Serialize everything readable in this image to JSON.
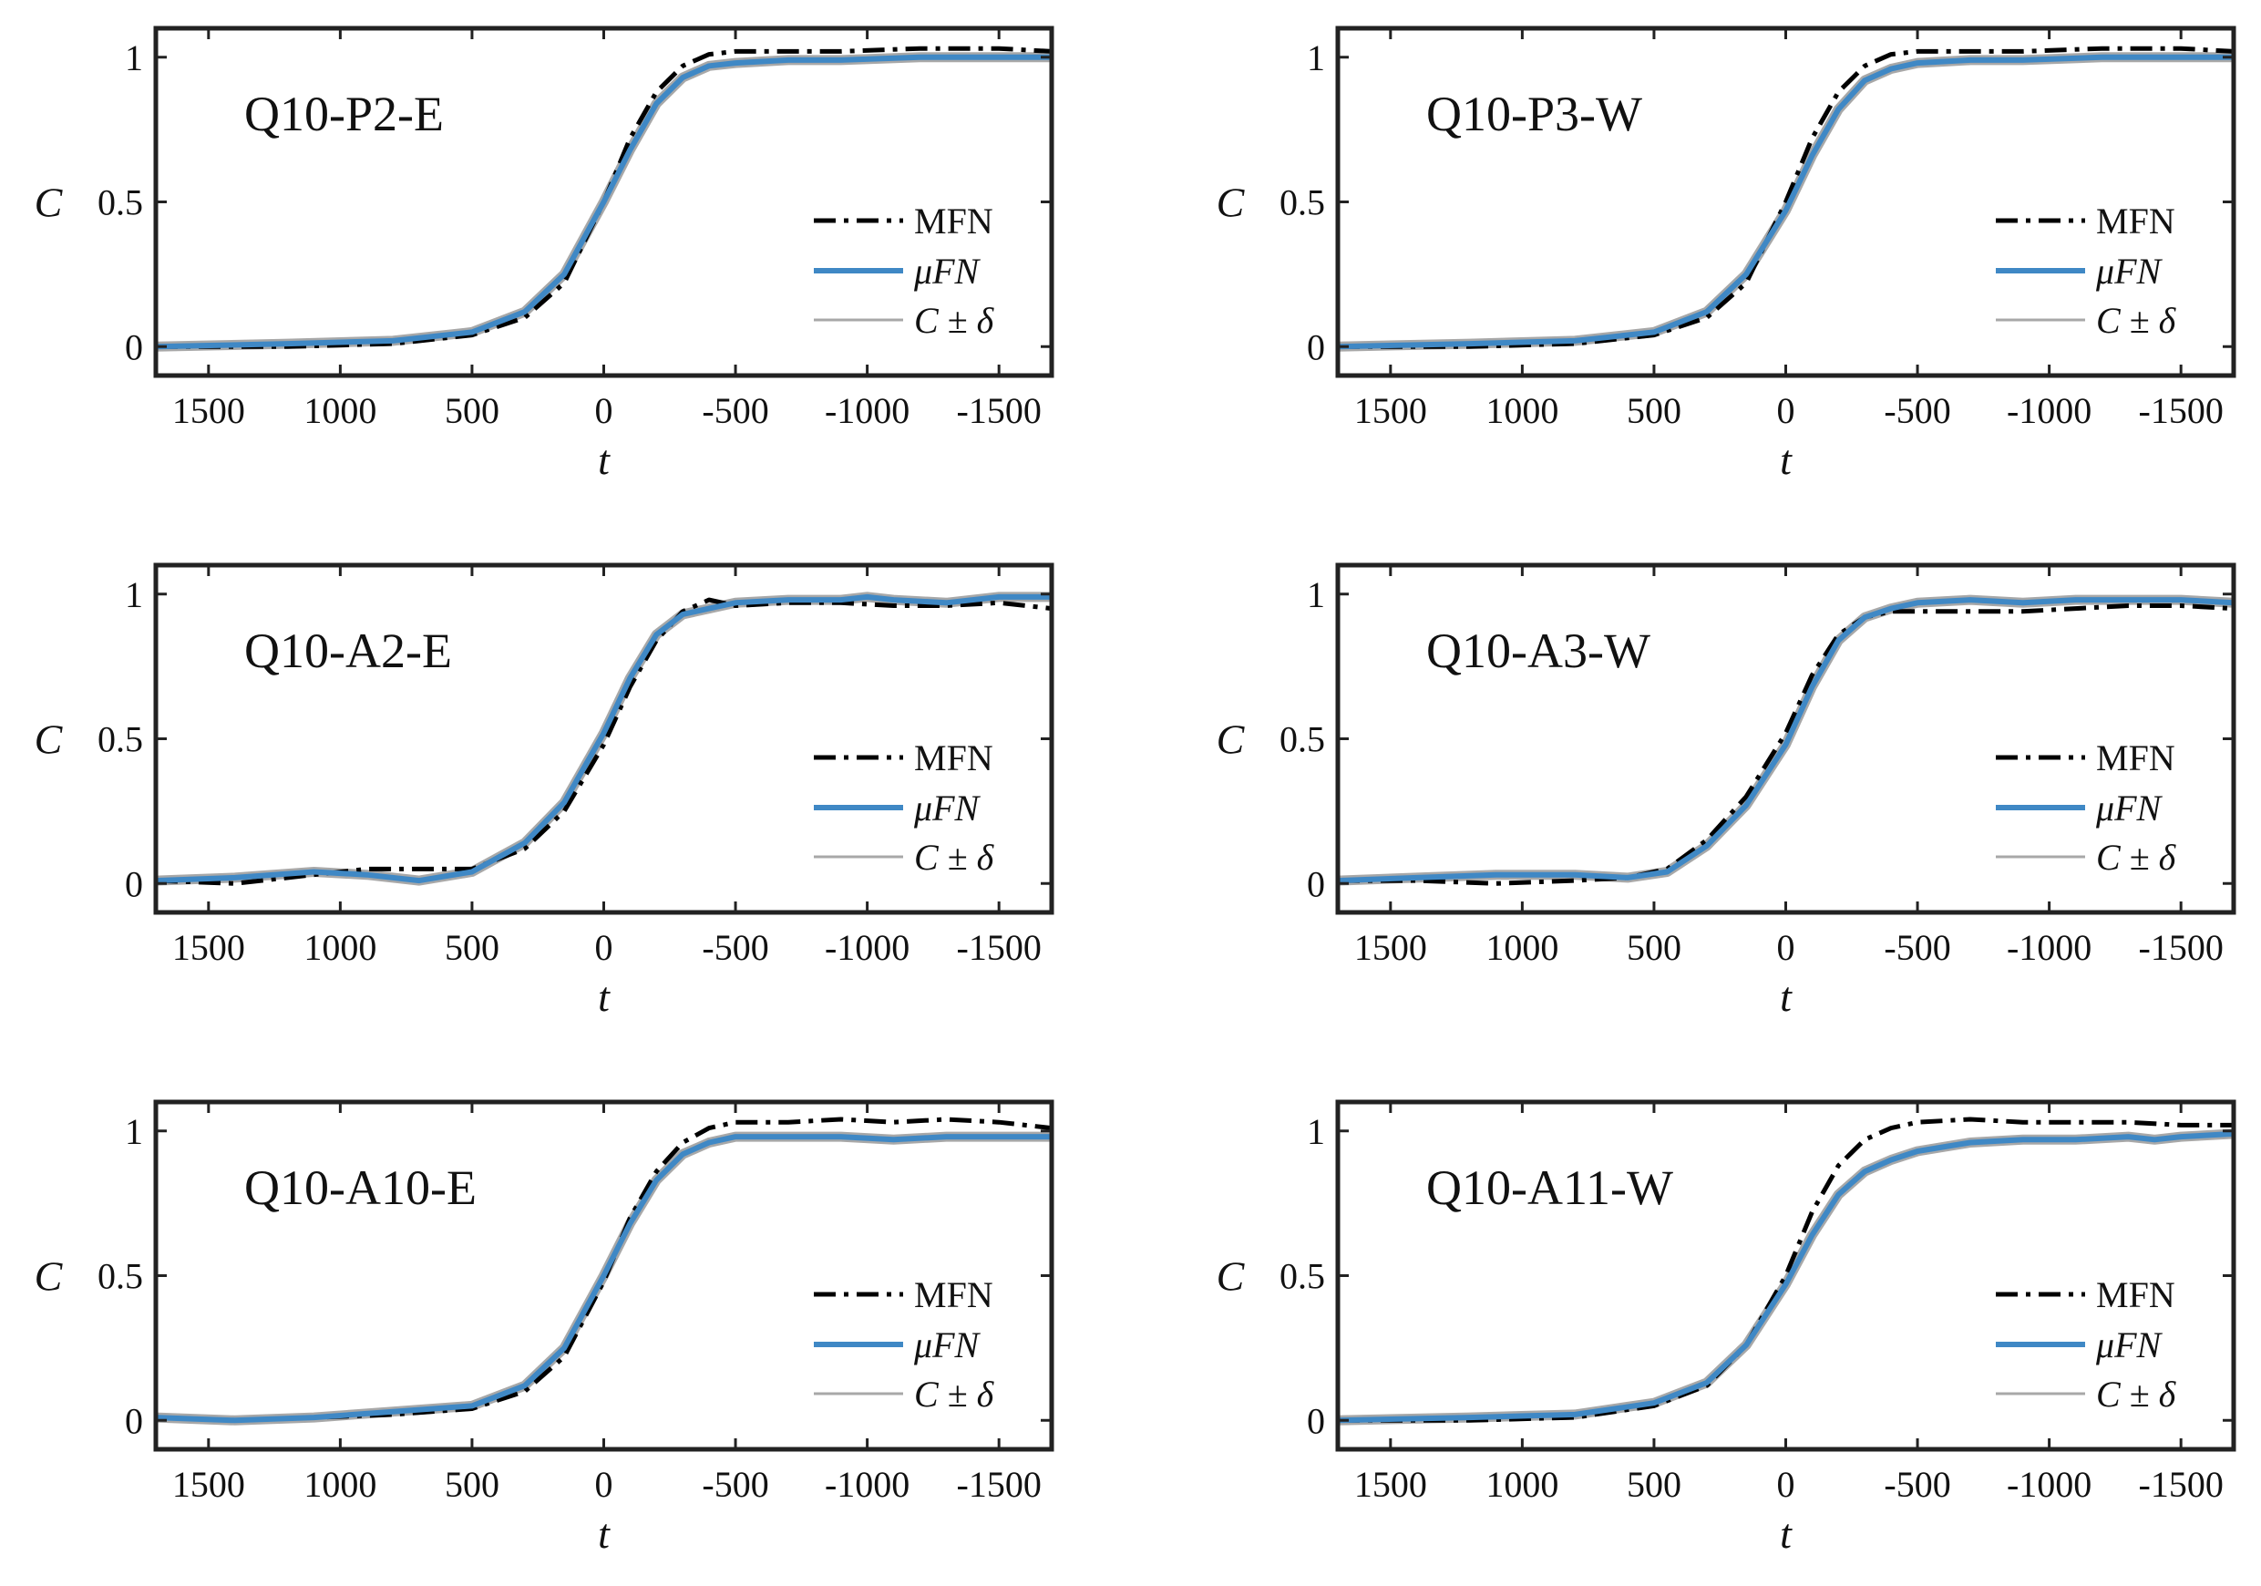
{
  "figure": {
    "layout": "3x2 grid of line plots",
    "colors": {
      "mfn": "#000000",
      "ufn": "#3f88c5",
      "band": "#a8a8a8",
      "axes": "#222222"
    }
  },
  "legend": {
    "items": [
      {
        "key": "mfn",
        "label": "MFN"
      },
      {
        "key": "ufn",
        "label": "μFN"
      },
      {
        "key": "band",
        "label": "C ± δ"
      }
    ]
  },
  "chart_data": [
    {
      "type": "line",
      "title": "Q10-P2-E",
      "xlabel": "t",
      "ylabel": "C",
      "xlim": [
        1700,
        -1700
      ],
      "ylim": [
        -0.1,
        1.1
      ],
      "xticks": [
        1500,
        1000,
        500,
        0,
        -500,
        -1000,
        -1500
      ],
      "xtick_labels": [
        "1500",
        "1000",
        "500",
        "0",
        "-500",
        "-1000",
        "-1500"
      ],
      "yticks": [
        0,
        0.5,
        1
      ],
      "ytick_labels": [
        "0",
        "0.5",
        "1"
      ],
      "legend_position": "lower-right",
      "series": [
        {
          "name": "MFN",
          "x": [
            1700,
            1200,
            800,
            500,
            300,
            150,
            0,
            -100,
            -200,
            -300,
            -400,
            -500,
            -700,
            -900,
            -1200,
            -1500,
            -1700
          ],
          "y": [
            0.0,
            0.0,
            0.01,
            0.04,
            0.1,
            0.22,
            0.5,
            0.72,
            0.88,
            0.97,
            1.01,
            1.02,
            1.02,
            1.02,
            1.03,
            1.03,
            1.02
          ]
        },
        {
          "name": "μFN",
          "x": [
            1700,
            1200,
            800,
            500,
            300,
            150,
            0,
            -100,
            -200,
            -300,
            -400,
            -500,
            -700,
            -900,
            -1200,
            -1500,
            -1700
          ],
          "y": [
            0.0,
            0.01,
            0.02,
            0.05,
            0.12,
            0.25,
            0.5,
            0.68,
            0.84,
            0.93,
            0.97,
            0.98,
            0.99,
            0.99,
            1.0,
            1.0,
            1.0
          ]
        }
      ]
    },
    {
      "type": "line",
      "title": "Q10-P3-W",
      "xlabel": "t",
      "ylabel": "C",
      "xlim": [
        1700,
        -1700
      ],
      "ylim": [
        -0.1,
        1.1
      ],
      "xticks": [
        1500,
        1000,
        500,
        0,
        -500,
        -1000,
        -1500
      ],
      "xtick_labels": [
        "1500",
        "1000",
        "500",
        "0",
        "-500",
        "-1000",
        "-1500"
      ],
      "yticks": [
        0,
        0.5,
        1
      ],
      "ytick_labels": [
        "0",
        "0.5",
        "1"
      ],
      "legend_position": "lower-right",
      "series": [
        {
          "name": "MFN",
          "x": [
            1700,
            1200,
            800,
            500,
            300,
            150,
            0,
            -100,
            -200,
            -300,
            -400,
            -500,
            -700,
            -900,
            -1200,
            -1500,
            -1700
          ],
          "y": [
            0.0,
            0.0,
            0.01,
            0.04,
            0.1,
            0.22,
            0.5,
            0.72,
            0.88,
            0.97,
            1.01,
            1.02,
            1.02,
            1.02,
            1.03,
            1.03,
            1.02
          ]
        },
        {
          "name": "μFN",
          "x": [
            1700,
            1200,
            800,
            500,
            300,
            150,
            0,
            -100,
            -200,
            -300,
            -400,
            -500,
            -700,
            -900,
            -1200,
            -1500,
            -1700
          ],
          "y": [
            0.0,
            0.01,
            0.02,
            0.05,
            0.12,
            0.25,
            0.47,
            0.66,
            0.82,
            0.92,
            0.96,
            0.98,
            0.99,
            0.99,
            1.0,
            1.0,
            1.0
          ]
        }
      ]
    },
    {
      "type": "line",
      "title": "Q10-A2-E",
      "xlabel": "t",
      "ylabel": "C",
      "xlim": [
        1700,
        -1700
      ],
      "ylim": [
        -0.1,
        1.1
      ],
      "xticks": [
        1500,
        1000,
        500,
        0,
        -500,
        -1000,
        -1500
      ],
      "xtick_labels": [
        "1500",
        "1000",
        "500",
        "0",
        "-500",
        "-1000",
        "-1500"
      ],
      "yticks": [
        0,
        0.5,
        1
      ],
      "ytick_labels": [
        "0",
        "0.5",
        "1"
      ],
      "legend_position": "lower-right",
      "series": [
        {
          "name": "MFN",
          "x": [
            1700,
            1400,
            1100,
            900,
            700,
            500,
            300,
            150,
            0,
            -100,
            -200,
            -300,
            -400,
            -500,
            -700,
            -900,
            -1100,
            -1300,
            -1500,
            -1700
          ],
          "y": [
            0.01,
            0.0,
            0.03,
            0.05,
            0.05,
            0.05,
            0.12,
            0.25,
            0.48,
            0.68,
            0.84,
            0.94,
            0.98,
            0.96,
            0.97,
            0.97,
            0.96,
            0.96,
            0.97,
            0.95
          ]
        },
        {
          "name": "μFN",
          "x": [
            1700,
            1400,
            1100,
            900,
            700,
            500,
            300,
            150,
            0,
            -100,
            -200,
            -300,
            -400,
            -500,
            -700,
            -900,
            -1000,
            -1100,
            -1300,
            -1500,
            -1700
          ],
          "y": [
            0.01,
            0.02,
            0.04,
            0.03,
            0.01,
            0.04,
            0.14,
            0.28,
            0.52,
            0.71,
            0.86,
            0.93,
            0.95,
            0.97,
            0.98,
            0.98,
            0.99,
            0.98,
            0.97,
            0.99,
            0.99
          ]
        }
      ]
    },
    {
      "type": "line",
      "title": "Q10-A3-W",
      "xlabel": "t",
      "ylabel": "C",
      "xlim": [
        1700,
        -1700
      ],
      "ylim": [
        -0.1,
        1.1
      ],
      "xticks": [
        1500,
        1000,
        500,
        0,
        -500,
        -1000,
        -1500
      ],
      "xtick_labels": [
        "1500",
        "1000",
        "500",
        "0",
        "-500",
        "-1000",
        "-1500"
      ],
      "yticks": [
        0,
        0.5,
        1
      ],
      "ytick_labels": [
        "0",
        "0.5",
        "1"
      ],
      "legend_position": "lower-right",
      "series": [
        {
          "name": "MFN",
          "x": [
            1700,
            1400,
            1100,
            800,
            600,
            450,
            300,
            150,
            0,
            -100,
            -200,
            -300,
            -400,
            -500,
            -700,
            -900,
            -1100,
            -1300,
            -1500,
            -1700
          ],
          "y": [
            0.01,
            0.01,
            0.0,
            0.01,
            0.02,
            0.05,
            0.15,
            0.3,
            0.52,
            0.72,
            0.86,
            0.92,
            0.94,
            0.94,
            0.94,
            0.94,
            0.95,
            0.96,
            0.96,
            0.95
          ]
        },
        {
          "name": "μFN",
          "x": [
            1700,
            1400,
            1100,
            800,
            600,
            450,
            300,
            150,
            0,
            -100,
            -200,
            -300,
            -400,
            -500,
            -700,
            -900,
            -1100,
            -1300,
            -1500,
            -1700
          ],
          "y": [
            0.01,
            0.02,
            0.03,
            0.03,
            0.02,
            0.04,
            0.13,
            0.27,
            0.48,
            0.68,
            0.84,
            0.92,
            0.95,
            0.97,
            0.98,
            0.97,
            0.98,
            0.98,
            0.98,
            0.97
          ]
        }
      ]
    },
    {
      "type": "line",
      "title": "Q10-A10-E",
      "xlabel": "t",
      "ylabel": "C",
      "xlim": [
        1700,
        -1700
      ],
      "ylim": [
        -0.1,
        1.1
      ],
      "xticks": [
        1500,
        1000,
        500,
        0,
        -500,
        -1000,
        -1500
      ],
      "xtick_labels": [
        "1500",
        "1000",
        "500",
        "0",
        "-500",
        "-1000",
        "-1500"
      ],
      "yticks": [
        0,
        0.5,
        1
      ],
      "ytick_labels": [
        "0",
        "0.5",
        "1"
      ],
      "legend_position": "lower-right",
      "series": [
        {
          "name": "MFN",
          "x": [
            1700,
            1400,
            1100,
            800,
            500,
            300,
            150,
            0,
            -100,
            -200,
            -300,
            -400,
            -500,
            -700,
            -900,
            -1100,
            -1300,
            -1500,
            -1700
          ],
          "y": [
            0.01,
            0.0,
            0.01,
            0.02,
            0.04,
            0.1,
            0.22,
            0.48,
            0.7,
            0.86,
            0.96,
            1.01,
            1.03,
            1.03,
            1.04,
            1.03,
            1.04,
            1.03,
            1.01
          ]
        },
        {
          "name": "μFN",
          "x": [
            1700,
            1400,
            1100,
            800,
            500,
            300,
            150,
            0,
            -100,
            -200,
            -300,
            -400,
            -500,
            -700,
            -900,
            -1100,
            -1300,
            -1500,
            -1700
          ],
          "y": [
            0.01,
            0.0,
            0.01,
            0.03,
            0.05,
            0.12,
            0.25,
            0.5,
            0.68,
            0.83,
            0.92,
            0.96,
            0.98,
            0.98,
            0.98,
            0.97,
            0.98,
            0.98,
            0.98
          ]
        }
      ]
    },
    {
      "type": "line",
      "title": "Q10-A11-W",
      "xlabel": "t",
      "ylabel": "C",
      "xlim": [
        1700,
        -1700
      ],
      "ylim": [
        -0.1,
        1.1
      ],
      "xticks": [
        1500,
        1000,
        500,
        0,
        -500,
        -1000,
        -1500
      ],
      "xtick_labels": [
        "1500",
        "1000",
        "500",
        "0",
        "-500",
        "-1000",
        "-1500"
      ],
      "yticks": [
        0,
        0.5,
        1
      ],
      "ytick_labels": [
        "0",
        "0.5",
        "1"
      ],
      "legend_position": "lower-right",
      "series": [
        {
          "name": "MFN",
          "x": [
            1700,
            1200,
            800,
            500,
            300,
            150,
            0,
            -100,
            -200,
            -300,
            -400,
            -500,
            -700,
            -900,
            -1100,
            -1300,
            -1500,
            -1700
          ],
          "y": [
            0.0,
            0.0,
            0.01,
            0.05,
            0.12,
            0.26,
            0.5,
            0.72,
            0.88,
            0.97,
            1.01,
            1.03,
            1.04,
            1.03,
            1.03,
            1.03,
            1.02,
            1.02
          ]
        },
        {
          "name": "μFN",
          "x": [
            1700,
            1200,
            800,
            500,
            300,
            150,
            0,
            -100,
            -200,
            -300,
            -400,
            -500,
            -700,
            -900,
            -1100,
            -1300,
            -1400,
            -1500,
            -1700
          ],
          "y": [
            0.0,
            0.01,
            0.02,
            0.06,
            0.13,
            0.26,
            0.47,
            0.64,
            0.78,
            0.86,
            0.9,
            0.93,
            0.96,
            0.97,
            0.97,
            0.98,
            0.97,
            0.98,
            0.99
          ]
        }
      ]
    }
  ]
}
